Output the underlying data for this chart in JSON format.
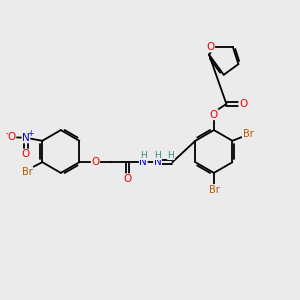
{
  "bg_color": "#ebebeb",
  "colors": {
    "bond": "#000000",
    "C": "#000000",
    "H": "#3a8888",
    "N": "#0000dd",
    "O": "#ee0000",
    "Br": "#bb5500"
  },
  "figsize": [
    3.0,
    3.0
  ],
  "dpi": 100
}
